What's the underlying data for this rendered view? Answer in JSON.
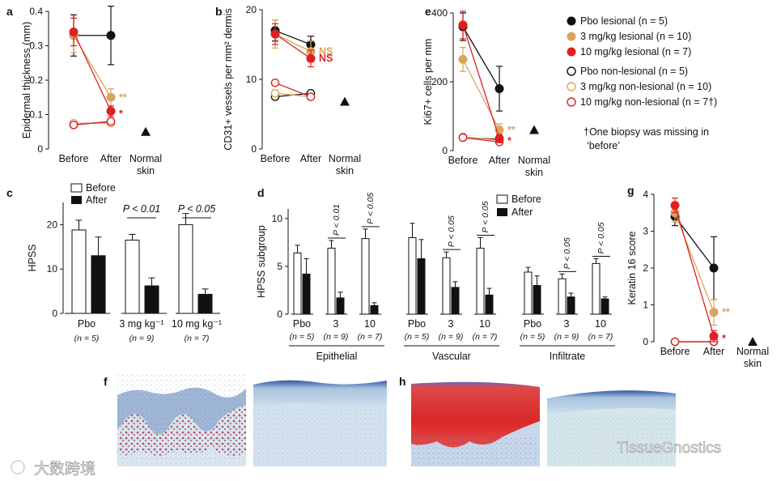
{
  "colors": {
    "pbo": "#111111",
    "mg3": "#d9a45c",
    "mg10": "#e02020",
    "nonlesional_fill": "#ffffff",
    "bar_before": "#ffffff",
    "bar_after": "#111111"
  },
  "labels": {
    "before": "Before",
    "after": "After",
    "normal1": "Normal",
    "normal2": "skin",
    "p01": "P < 0.01",
    "p05": "P < 0.05",
    "pbo": "Pbo",
    "mg3_full": "3 mg kg⁻¹",
    "mg10_full": "10 mg kg⁻¹",
    "n5": "(n = 5)",
    "n9": "(n = 9)",
    "n7": "(n = 7)",
    "d3": "3",
    "d10": "10"
  },
  "legend": {
    "items": [
      "Pbo lesional (n = 5)",
      "3 mg/kg lesional (n = 10)",
      "10 mg/kg lesional (n = 7)",
      "Pbo non-lesional (n = 5)",
      "3 mg/kg non-lesional (n = 10)",
      "10 mg/kg non-lesional (n = 7†)"
    ],
    "footnote1": "†One biopsy was missing in",
    "footnote2": "‘before’"
  },
  "panels": {
    "a": "a",
    "b": "b",
    "c": "c",
    "d": "d",
    "e": "e",
    "f": "f",
    "g": "g",
    "h": "h"
  },
  "watermarks": {
    "left": "大数跨境",
    "right": "TissueGnostics"
  },
  "chart_data": [
    {
      "id": "a",
      "type": "line",
      "ylabel": "Epidermal thickness (mm)",
      "ylim": [
        0,
        0.4
      ],
      "yticks": [
        "0",
        "0.1",
        "0.2",
        "0.3",
        "0.4"
      ],
      "x": [
        "Before",
        "After"
      ],
      "series": [
        {
          "name": "Pbo lesional",
          "values": [
            0.33,
            0.33
          ],
          "err": [
            0.06,
            0.085
          ]
        },
        {
          "name": "3 mg/kg lesional",
          "values": [
            0.33,
            0.15
          ],
          "err": [
            0.05,
            0.025
          ]
        },
        {
          "name": "10 mg/kg lesional",
          "values": [
            0.34,
            0.11
          ],
          "err": [
            0.04,
            0.015
          ]
        },
        {
          "name": "Pbo non-lesional",
          "values": [
            0.07,
            0.08
          ]
        },
        {
          "name": "3 mg/kg non-lesional",
          "values": [
            0.075,
            0.075
          ]
        },
        {
          "name": "10 mg/kg non-lesional",
          "values": [
            0.07,
            0.08
          ]
        }
      ],
      "normal_skin": 0.05,
      "annotations": [
        {
          "text": "**",
          "series": "3 mg/kg lesional"
        },
        {
          "text": "*",
          "series": "10 mg/kg lesional"
        }
      ]
    },
    {
      "id": "b",
      "type": "line",
      "ylabel": "CD31+ vessels per mm² dermis",
      "ylim": [
        0,
        20
      ],
      "yticks": [
        "0",
        "10",
        "20"
      ],
      "x": [
        "Before",
        "After"
      ],
      "series": [
        {
          "name": "Pbo lesional",
          "values": [
            17,
            15
          ],
          "err": [
            1.5,
            1.2
          ]
        },
        {
          "name": "3 mg/kg lesional",
          "values": [
            16.5,
            14
          ],
          "err": [
            2,
            1.5
          ]
        },
        {
          "name": "10 mg/kg lesional",
          "values": [
            16.5,
            13
          ],
          "err": [
            1.5,
            1.2
          ]
        },
        {
          "name": "Pbo non-lesional",
          "values": [
            7.5,
            8
          ]
        },
        {
          "name": "3 mg/kg non-lesional",
          "values": [
            8,
            7.5
          ]
        },
        {
          "name": "10 mg/kg non-lesional",
          "values": [
            9.5,
            7.5
          ]
        }
      ],
      "normal_skin": 6.8,
      "annotations": [
        {
          "text": "NS",
          "series": "3 mg/kg lesional"
        },
        {
          "text": "NS",
          "series": "10 mg/kg lesional"
        }
      ]
    },
    {
      "id": "e",
      "type": "line",
      "ylabel": "Ki67+ cells per mm",
      "ylim": [
        0,
        400
      ],
      "yticks": [
        "0",
        "200",
        "400"
      ],
      "x": [
        "Before",
        "After"
      ],
      "series": [
        {
          "name": "Pbo lesional",
          "values": [
            360,
            180
          ],
          "err": [
            40,
            65
          ]
        },
        {
          "name": "3 mg/kg lesional",
          "values": [
            265,
            60
          ],
          "err": [
            35,
            18
          ]
        },
        {
          "name": "10 mg/kg lesional",
          "values": [
            365,
            35
          ],
          "err": [
            40,
            12
          ]
        },
        {
          "name": "Pbo non-lesional",
          "values": [
            38,
            33
          ]
        },
        {
          "name": "3 mg/kg non-lesional",
          "values": [
            40,
            30
          ]
        },
        {
          "name": "10 mg/kg non-lesional",
          "values": [
            38,
            25
          ]
        }
      ],
      "normal_skin": 60,
      "annotations": [
        {
          "text": "**",
          "series": "3 mg/kg lesional"
        },
        {
          "text": "*",
          "series": "10 mg/kg lesional"
        }
      ]
    },
    {
      "id": "g",
      "type": "line",
      "ylabel": "Keratin 16 score",
      "ylim": [
        0,
        4
      ],
      "yticks": [
        "0",
        "1",
        "2",
        "3",
        "4"
      ],
      "x": [
        "Before",
        "After"
      ],
      "series": [
        {
          "name": "Pbo lesional",
          "values": [
            3.4,
            2.0
          ],
          "err": [
            0.25,
            0.85
          ]
        },
        {
          "name": "3 mg/kg lesional",
          "values": [
            3.5,
            0.8
          ],
          "err": [
            0.25,
            0.35
          ]
        },
        {
          "name": "10 mg/kg lesional",
          "values": [
            3.7,
            0.15
          ],
          "err": [
            0.2,
            0.15
          ]
        },
        {
          "name": "Pbo non-lesional",
          "values": [
            0,
            0
          ]
        },
        {
          "name": "3 mg/kg non-lesional",
          "values": [
            0,
            0
          ]
        },
        {
          "name": "10 mg/kg non-lesional",
          "values": [
            0,
            0
          ]
        }
      ],
      "normal_skin": 0,
      "annotations": [
        {
          "text": "**",
          "series": "3 mg/kg lesional"
        },
        {
          "text": "*",
          "series": "10 mg/kg lesional"
        }
      ]
    },
    {
      "id": "c",
      "type": "bar",
      "ylabel": "HPSS",
      "ylim": [
        0,
        25
      ],
      "yticks": [
        "0",
        "10",
        "20"
      ],
      "categories": [
        "Pbo",
        "3 mg kg⁻¹",
        "10 mg kg⁻¹"
      ],
      "series": [
        {
          "name": "Before",
          "values": [
            18.8,
            16.5,
            20
          ],
          "err": [
            2.2,
            1.3,
            2.5
          ]
        },
        {
          "name": "After",
          "values": [
            13,
            6.2,
            4.3
          ],
          "err": [
            4.2,
            1.8,
            1.2
          ]
        }
      ],
      "pvalues": [
        "",
        "P < 0.01",
        "P < 0.05"
      ]
    },
    {
      "id": "d",
      "type": "bar",
      "ylabel": "HPSS subgroup",
      "ylim": [
        0,
        11
      ],
      "yticks": [
        "0",
        "5",
        "10"
      ],
      "groups": [
        "Epithelial",
        "Vascular",
        "Infiltrate"
      ],
      "categories": [
        "Pbo",
        "3",
        "10"
      ],
      "series": [
        {
          "name": "Before",
          "values": [
            [
              6.4,
              6.9,
              7.9
            ],
            [
              8,
              5.9,
              6.9
            ],
            [
              4.4,
              3.7,
              5.3
            ]
          ],
          "err": [
            [
              0.8,
              0.8,
              1
            ],
            [
              1.5,
              0.6,
              1.1
            ],
            [
              0.5,
              0.5,
              0.5
            ]
          ]
        },
        {
          "name": "After",
          "values": [
            [
              4.2,
              1.7,
              0.9
            ],
            [
              5.8,
              2.8,
              2.0
            ],
            [
              3.0,
              1.8,
              1.6
            ]
          ],
          "err": [
            [
              1.6,
              0.6,
              0.3
            ],
            [
              2,
              0.6,
              0.7
            ],
            [
              1,
              0.4,
              0.2
            ]
          ]
        }
      ],
      "pvalues": [
        [
          "",
          "P < 0.01",
          "P < 0.05"
        ],
        [
          "",
          "P < 0.05",
          "P < 0.05"
        ],
        [
          "",
          "P < 0.05",
          "P < 0.05"
        ]
      ]
    }
  ]
}
